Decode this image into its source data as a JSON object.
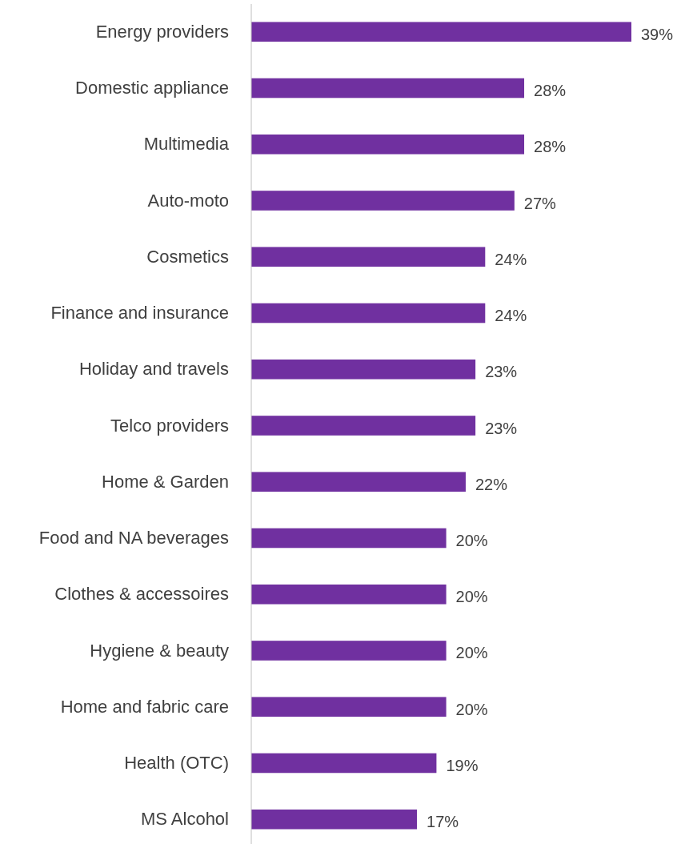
{
  "chart_data": {
    "type": "bar",
    "orientation": "horizontal",
    "categories": [
      "Energy providers",
      "Domestic appliance",
      "Multimedia",
      "Auto-moto",
      "Cosmetics",
      "Finance and insurance",
      "Holiday and travels",
      "Telco providers",
      "Home & Garden",
      "Food and NA beverages",
      "Clothes & accessoires",
      "Hygiene & beauty",
      "Home and fabric care",
      "Health (OTC)",
      "MS Alcohol"
    ],
    "values": [
      39,
      28,
      28,
      27,
      24,
      24,
      23,
      23,
      22,
      20,
      20,
      20,
      20,
      19,
      17
    ],
    "value_labels": [
      "39%",
      "28%",
      "28%",
      "27%",
      "24%",
      "24%",
      "23%",
      "23%",
      "22%",
      "20%",
      "20%",
      "20%",
      "20%",
      "19%",
      "17%"
    ],
    "color": "#7030a0"
  }
}
